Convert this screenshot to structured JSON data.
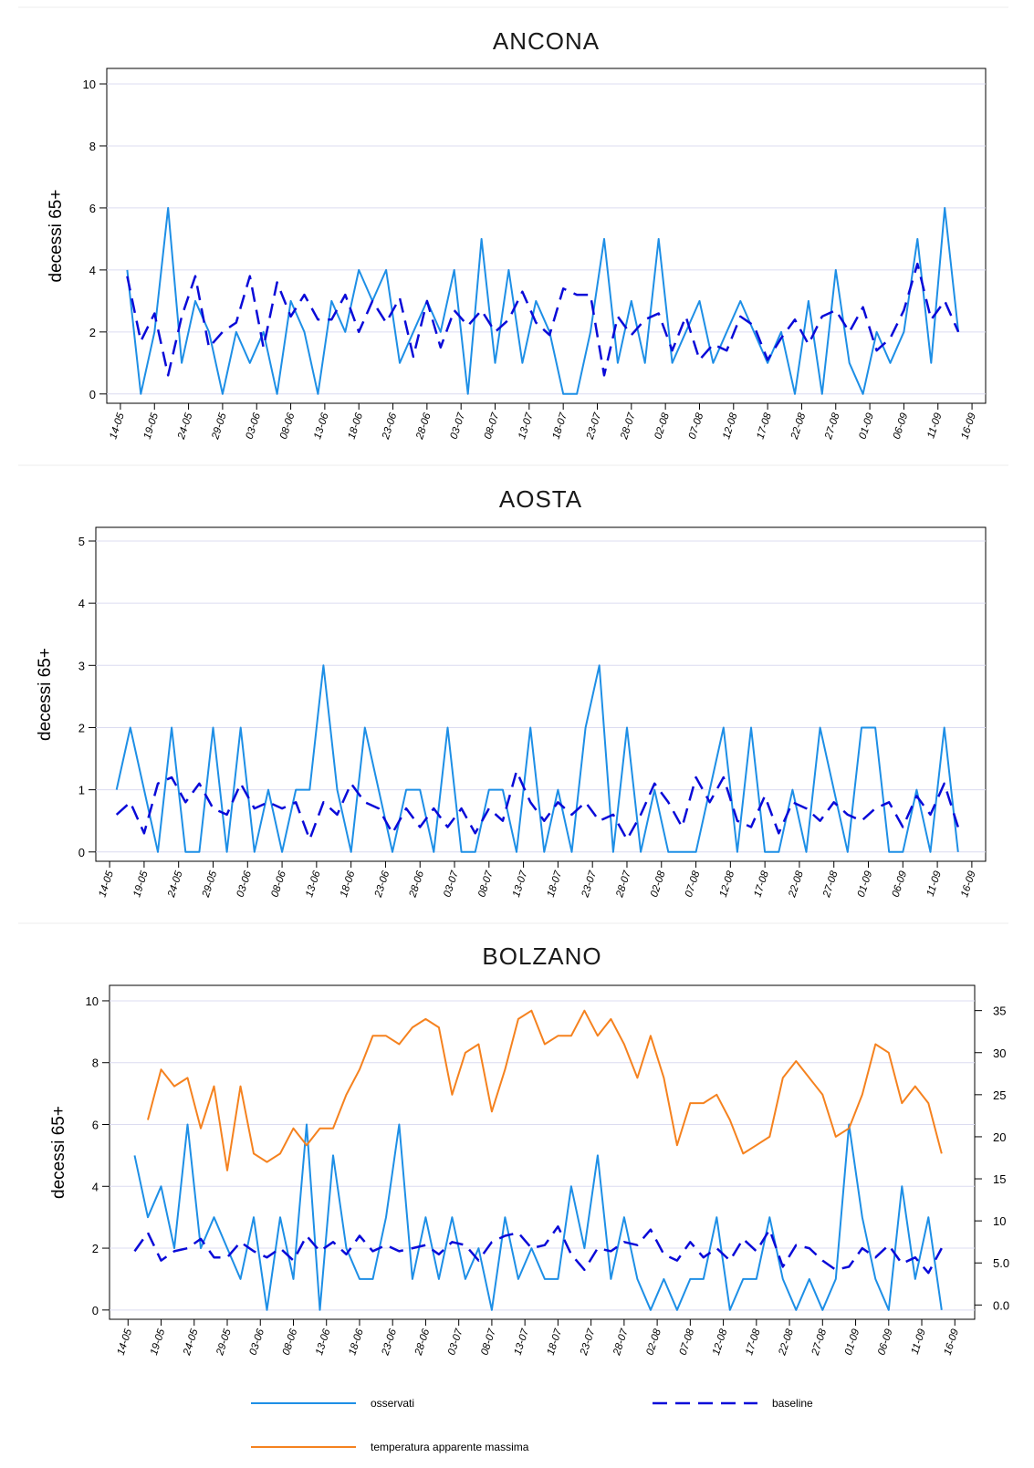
{
  "chart_data": [
    {
      "type": "line",
      "title": "ANCONA",
      "ylabel": "decessi 65+",
      "grid": true,
      "xlim": [
        -2,
        127
      ],
      "ylim": [
        -0.3,
        10.5
      ],
      "yticks": [
        0,
        2,
        4,
        6,
        8,
        10
      ],
      "xticks": [
        {
          "value": 0,
          "label": "14-05"
        },
        {
          "value": 5,
          "label": "19-05"
        },
        {
          "value": 10,
          "label": "24-05"
        },
        {
          "value": 15,
          "label": "29-05"
        },
        {
          "value": 20,
          "label": "03-06"
        },
        {
          "value": 25,
          "label": "08-06"
        },
        {
          "value": 30,
          "label": "13-06"
        },
        {
          "value": 35,
          "label": "18-06"
        },
        {
          "value": 40,
          "label": "23-06"
        },
        {
          "value": 45,
          "label": "28-06"
        },
        {
          "value": 50,
          "label": "03-07"
        },
        {
          "value": 55,
          "label": "08-07"
        },
        {
          "value": 60,
          "label": "13-07"
        },
        {
          "value": 65,
          "label": "18-07"
        },
        {
          "value": 70,
          "label": "23-07"
        },
        {
          "value": 75,
          "label": "28-07"
        },
        {
          "value": 80,
          "label": "02-08"
        },
        {
          "value": 85,
          "label": "07-08"
        },
        {
          "value": 90,
          "label": "12-08"
        },
        {
          "value": 95,
          "label": "17-08"
        },
        {
          "value": 100,
          "label": "22-08"
        },
        {
          "value": 105,
          "label": "27-08"
        },
        {
          "value": 110,
          "label": "01-09"
        },
        {
          "value": 115,
          "label": "06-09"
        },
        {
          "value": 120,
          "label": "11-09"
        },
        {
          "value": 125,
          "label": "16-09"
        }
      ],
      "x": [
        1,
        3,
        5,
        7,
        9,
        11,
        13,
        15,
        17,
        19,
        21,
        23,
        25,
        27,
        29,
        31,
        33,
        35,
        37,
        39,
        41,
        43,
        45,
        47,
        49,
        51,
        53,
        55,
        57,
        59,
        61,
        63,
        65,
        67,
        69,
        71,
        73,
        75,
        77,
        79,
        81,
        83,
        85,
        87,
        89,
        91,
        93,
        95,
        97,
        99,
        101,
        103,
        105,
        107,
        109,
        111,
        113,
        115,
        117,
        119,
        121,
        123
      ],
      "series": [
        {
          "name": "osservati",
          "color": "#1e8fe6",
          "style": "solid",
          "values": [
            4,
            0,
            2,
            6,
            1,
            3,
            2,
            0,
            2,
            1,
            2,
            0,
            3,
            2,
            0,
            3,
            2,
            4,
            3,
            4,
            1,
            2,
            3,
            2,
            4,
            0,
            5,
            1,
            4,
            1,
            3,
            2,
            0,
            0,
            2,
            5,
            1,
            3,
            1,
            5,
            1,
            2,
            3,
            1,
            2,
            3,
            2,
            1,
            2,
            0,
            3,
            0,
            4,
            1,
            0,
            2,
            1,
            2,
            5,
            1,
            6,
            2
          ]
        },
        {
          "name": "baseline",
          "color": "#0a0ad8",
          "style": "dashed",
          "values": [
            3.8,
            1.7,
            2.6,
            0.6,
            2.5,
            3.8,
            1.5,
            2.0,
            2.3,
            3.8,
            1.5,
            3.6,
            2.5,
            3.2,
            2.4,
            2.4,
            3.2,
            2.0,
            3.0,
            2.3,
            3.1,
            1.2,
            3.0,
            1.5,
            2.7,
            2.2,
            2.7,
            2.0,
            2.4,
            3.3,
            2.3,
            1.9,
            3.4,
            3.2,
            3.2,
            0.6,
            2.5,
            1.9,
            2.4,
            2.6,
            1.4,
            2.5,
            1.1,
            1.6,
            1.4,
            2.5,
            2.2,
            1.1,
            1.8,
            2.4,
            1.6,
            2.5,
            2.7,
            2.0,
            2.8,
            1.4,
            1.8,
            2.7,
            4.2,
            2.4,
            3.0,
            2.0
          ]
        }
      ]
    },
    {
      "type": "line",
      "title": "AOSTA",
      "ylabel": "decessi 65+",
      "grid": true,
      "xlim": [
        -2,
        127
      ],
      "ylim": [
        -0.15,
        5.22
      ],
      "yticks": [
        0,
        1,
        2,
        3,
        4,
        5
      ],
      "xticks": [
        {
          "value": 0,
          "label": "14-05"
        },
        {
          "value": 5,
          "label": "19-05"
        },
        {
          "value": 10,
          "label": "24-05"
        },
        {
          "value": 15,
          "label": "29-05"
        },
        {
          "value": 20,
          "label": "03-06"
        },
        {
          "value": 25,
          "label": "08-06"
        },
        {
          "value": 30,
          "label": "13-06"
        },
        {
          "value": 35,
          "label": "18-06"
        },
        {
          "value": 40,
          "label": "23-06"
        },
        {
          "value": 45,
          "label": "28-06"
        },
        {
          "value": 50,
          "label": "03-07"
        },
        {
          "value": 55,
          "label": "08-07"
        },
        {
          "value": 60,
          "label": "13-07"
        },
        {
          "value": 65,
          "label": "18-07"
        },
        {
          "value": 70,
          "label": "23-07"
        },
        {
          "value": 75,
          "label": "28-07"
        },
        {
          "value": 80,
          "label": "02-08"
        },
        {
          "value": 85,
          "label": "07-08"
        },
        {
          "value": 90,
          "label": "12-08"
        },
        {
          "value": 95,
          "label": "17-08"
        },
        {
          "value": 100,
          "label": "22-08"
        },
        {
          "value": 105,
          "label": "27-08"
        },
        {
          "value": 110,
          "label": "01-09"
        },
        {
          "value": 115,
          "label": "06-09"
        },
        {
          "value": 120,
          "label": "11-09"
        },
        {
          "value": 125,
          "label": "16-09"
        }
      ],
      "x": [
        1,
        3,
        5,
        7,
        9,
        11,
        13,
        15,
        17,
        19,
        21,
        23,
        25,
        27,
        29,
        31,
        33,
        35,
        37,
        39,
        41,
        43,
        45,
        47,
        49,
        51,
        53,
        55,
        57,
        59,
        61,
        63,
        65,
        67,
        69,
        71,
        73,
        75,
        77,
        79,
        81,
        83,
        85,
        87,
        89,
        91,
        93,
        95,
        97,
        99,
        101,
        103,
        105,
        107,
        109,
        111,
        113,
        115,
        117,
        119,
        121,
        123
      ],
      "series": [
        {
          "name": "osservati",
          "color": "#1e8fe6",
          "style": "solid",
          "values": [
            1,
            2,
            1,
            0,
            2,
            0,
            0,
            2,
            0,
            2,
            0,
            1,
            0,
            1,
            1,
            3,
            1,
            0,
            2,
            1,
            0,
            1,
            1,
            0,
            2,
            0,
            0,
            1,
            1,
            0,
            2,
            0,
            1,
            0,
            2,
            3,
            0,
            2,
            0,
            1,
            0,
            0,
            0,
            1,
            2,
            0,
            2,
            0,
            0,
            1,
            0,
            2,
            1,
            0,
            2,
            2,
            0,
            0,
            1,
            0,
            2,
            0
          ]
        },
        {
          "name": "baseline",
          "color": "#0a0ad8",
          "style": "dashed",
          "values": [
            0.6,
            0.8,
            0.3,
            1.1,
            1.2,
            0.8,
            1.1,
            0.7,
            0.6,
            1.1,
            0.7,
            0.8,
            0.7,
            0.8,
            0.2,
            0.8,
            0.6,
            1.1,
            0.8,
            0.7,
            0.3,
            0.7,
            0.4,
            0.7,
            0.4,
            0.7,
            0.3,
            0.7,
            0.5,
            1.3,
            0.8,
            0.5,
            0.8,
            0.6,
            0.8,
            0.5,
            0.6,
            0.2,
            0.6,
            1.1,
            0.8,
            0.4,
            1.2,
            0.8,
            1.2,
            0.5,
            0.4,
            0.9,
            0.3,
            0.8,
            0.7,
            0.5,
            0.8,
            0.6,
            0.5,
            0.7,
            0.8,
            0.4,
            0.9,
            0.6,
            1.1,
            0.4
          ]
        }
      ]
    },
    {
      "type": "line",
      "title": "BOLZANO",
      "ylabel": "decessi 65+",
      "grid": true,
      "xlim": [
        -2.8,
        128
      ],
      "ylim": [
        -0.3,
        10.5
      ],
      "yticks": [
        0,
        2,
        4,
        6,
        8,
        10
      ],
      "y2lim": [
        -1.7,
        38.0
      ],
      "y2ticks": [
        {
          "value": 0,
          "label": "0.0"
        },
        {
          "value": 5,
          "label": "5.0"
        },
        10,
        15,
        20,
        25,
        30,
        35
      ],
      "xticks": [
        {
          "value": 0,
          "label": "14-05"
        },
        {
          "value": 5,
          "label": "19-05"
        },
        {
          "value": 10,
          "label": "24-05"
        },
        {
          "value": 15,
          "label": "29-05"
        },
        {
          "value": 20,
          "label": "03-06"
        },
        {
          "value": 25,
          "label": "08-06"
        },
        {
          "value": 30,
          "label": "13-06"
        },
        {
          "value": 35,
          "label": "18-06"
        },
        {
          "value": 40,
          "label": "23-06"
        },
        {
          "value": 45,
          "label": "28-06"
        },
        {
          "value": 50,
          "label": "03-07"
        },
        {
          "value": 55,
          "label": "08-07"
        },
        {
          "value": 60,
          "label": "13-07"
        },
        {
          "value": 65,
          "label": "18-07"
        },
        {
          "value": 70,
          "label": "23-07"
        },
        {
          "value": 75,
          "label": "28-07"
        },
        {
          "value": 80,
          "label": "02-08"
        },
        {
          "value": 85,
          "label": "07-08"
        },
        {
          "value": 90,
          "label": "12-08"
        },
        {
          "value": 95,
          "label": "17-08"
        },
        {
          "value": 100,
          "label": "22-08"
        },
        {
          "value": 105,
          "label": "27-08"
        },
        {
          "value": 110,
          "label": "01-09"
        },
        {
          "value": 115,
          "label": "06-09"
        },
        {
          "value": 120,
          "label": "11-09"
        },
        {
          "value": 125,
          "label": "16-09"
        }
      ],
      "x": [
        1,
        3,
        5,
        7,
        9,
        11,
        13,
        15,
        17,
        19,
        21,
        23,
        25,
        27,
        29,
        31,
        33,
        35,
        37,
        39,
        41,
        43,
        45,
        47,
        49,
        51,
        53,
        55,
        57,
        59,
        61,
        63,
        65,
        67,
        69,
        71,
        73,
        75,
        77,
        79,
        81,
        83,
        85,
        87,
        89,
        91,
        93,
        95,
        97,
        99,
        101,
        103,
        105,
        107,
        109,
        111,
        113,
        115,
        117,
        119,
        121,
        123
      ],
      "series": [
        {
          "name": "osservati",
          "color": "#1e8fe6",
          "style": "solid",
          "values": [
            5,
            3,
            4,
            2,
            6,
            2,
            3,
            2,
            1,
            3,
            0,
            3,
            1,
            6,
            0,
            5,
            2,
            1,
            1,
            3,
            6,
            1,
            3,
            1,
            3,
            1,
            2,
            0,
            3,
            1,
            2,
            1,
            1,
            4,
            2,
            5,
            1,
            3,
            1,
            0,
            1,
            0,
            1,
            1,
            3,
            0,
            1,
            1,
            3,
            1,
            0,
            1,
            0,
            1,
            6,
            3,
            1,
            0,
            4,
            1,
            3,
            0
          ]
        },
        {
          "name": "baseline",
          "color": "#0a0ad8",
          "style": "dashed",
          "values": [
            1.9,
            2.5,
            1.6,
            1.9,
            2.0,
            2.3,
            1.7,
            1.7,
            2.2,
            1.9,
            1.7,
            2.0,
            1.6,
            2.4,
            1.9,
            2.2,
            1.8,
            2.4,
            1.9,
            2.1,
            1.9,
            2.0,
            2.1,
            1.8,
            2.2,
            2.1,
            1.6,
            2.2,
            2.4,
            2.5,
            2.0,
            2.1,
            2.7,
            1.8,
            1.3,
            2.0,
            1.9,
            2.2,
            2.1,
            2.6,
            1.8,
            1.6,
            2.2,
            1.7,
            2.0,
            1.6,
            2.3,
            1.9,
            2.6,
            1.4,
            2.1,
            2.0,
            1.6,
            1.3,
            1.4,
            2.0,
            1.7,
            2.1,
            1.5,
            1.7,
            1.2,
            2.0
          ]
        },
        {
          "name": "temperatura apparente massima",
          "color": "#f5821f",
          "style": "solid",
          "axis": "y2",
          "values": [
            null,
            22,
            28,
            26,
            27,
            21,
            26,
            16,
            26,
            18,
            17,
            18,
            21,
            19,
            21,
            21,
            25,
            28,
            32,
            32,
            31,
            33,
            34,
            33,
            25,
            30,
            31,
            23,
            28,
            34,
            35,
            31,
            32,
            32,
            35,
            32,
            34,
            31,
            27,
            32,
            27,
            19,
            24,
            24,
            25,
            22,
            18,
            19,
            20,
            27,
            29,
            27,
            25,
            20,
            21,
            25,
            31,
            30,
            24,
            26,
            24,
            18
          ]
        }
      ]
    }
  ]
}
